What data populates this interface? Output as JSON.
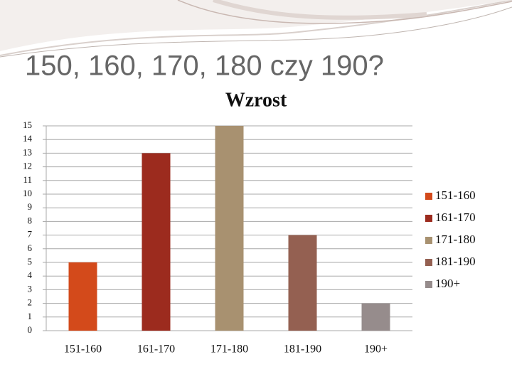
{
  "slide_title": "150, 160, 170, 180 czy 190?",
  "chart_data": {
    "type": "bar",
    "title": "Wzrost",
    "categories": [
      "151-160",
      "161-170",
      "171-180",
      "181-190",
      "190+"
    ],
    "values": [
      5,
      13,
      15,
      7,
      2
    ],
    "colors": [
      "#d34a1b",
      "#9c2b1e",
      "#a89170",
      "#946051",
      "#968c8c"
    ],
    "ylim": [
      0,
      15
    ],
    "yticks": [
      0,
      1,
      2,
      3,
      4,
      5,
      6,
      7,
      8,
      9,
      10,
      11,
      12,
      13,
      14,
      15
    ],
    "grid": true,
    "legend": "right"
  }
}
